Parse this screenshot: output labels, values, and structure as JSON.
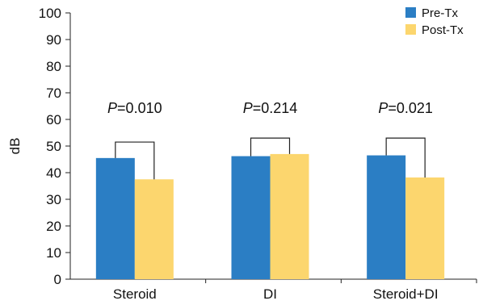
{
  "chart_data": {
    "type": "bar",
    "categories": [
      "Steroid",
      "DI",
      "Steroid+DI"
    ],
    "series": [
      {
        "name": "Pre-Tx",
        "values": [
          45.5,
          46.2,
          46.5
        ],
        "color": "#2b7ec4"
      },
      {
        "name": "Post-Tx",
        "values": [
          37.5,
          47.0,
          38.2
        ],
        "color": "#fcd66e"
      }
    ],
    "ylabel": "dB",
    "ylim": [
      0,
      100
    ],
    "yticks": [
      0,
      10,
      20,
      30,
      40,
      50,
      60,
      70,
      80,
      90,
      100
    ],
    "legend_position": "top-right",
    "annotations": [
      {
        "p_label": "P",
        "p_value": "=0.010",
        "bracket_top": 51.5
      },
      {
        "p_label": "P",
        "p_value": "=0.214",
        "bracket_top": 53.0
      },
      {
        "p_label": "P",
        "p_value": "=0.021",
        "bracket_top": 53.0
      }
    ]
  }
}
